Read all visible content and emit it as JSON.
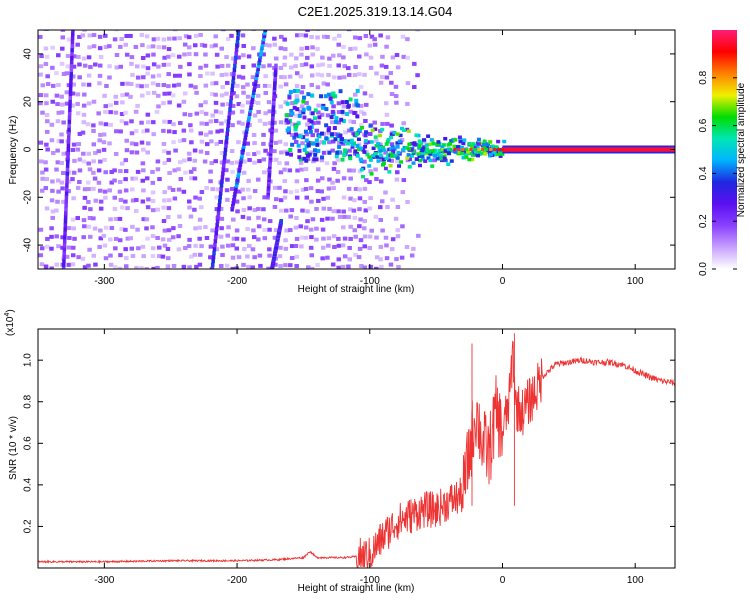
{
  "title": "C2E1.2025.319.13.14.G04",
  "colors": {
    "spectrum": [
      "#ffffff",
      "#c8a0ff",
      "#8a40ff",
      "#5a10f0",
      "#1e28e0",
      "#00b4ff",
      "#00e6b4",
      "#00dc00",
      "#f0f000",
      "#ff8000",
      "#ff0000",
      "#ff1e78"
    ],
    "snr_line": "#ee3333"
  },
  "chart_data": [
    {
      "type": "heatmap",
      "name": "spectrogram",
      "xlabel": "Height of straight line (km)",
      "ylabel": "Frequency (Hz)",
      "xlim": [
        -350,
        130
      ],
      "ylim": [
        -50,
        50
      ],
      "xticks": [
        -300,
        -200,
        -100,
        0,
        100
      ],
      "yticks": [
        -40,
        -20,
        0,
        20,
        40
      ],
      "xtick_labels": [
        "-300",
        "-200",
        "-100",
        "0",
        "100"
      ],
      "ytick_labels": [
        "-40",
        "-20",
        "0",
        "20",
        "40"
      ],
      "colorbar": {
        "label": "Normalized spectral amplitude",
        "range": [
          0,
          1
        ],
        "ticks": [
          0.0,
          0.2,
          0.4,
          0.6,
          0.8
        ],
        "tick_labels": [
          "0.0",
          "0.2",
          "0.4",
          "0.6",
          "0.8"
        ]
      },
      "features": [
        {
          "name": "noise field",
          "x_range": [
            -350,
            -110
          ],
          "freq_range": [
            -50,
            50
          ],
          "amplitude": 0.15
        },
        {
          "name": "streak A",
          "from": [
            -332,
            -50
          ],
          "to": [
            -325,
            50
          ],
          "amplitude": 0.2
        },
        {
          "name": "streak B",
          "from": [
            -220,
            -50
          ],
          "to": [
            -200,
            50
          ],
          "amplitude": 0.25
        },
        {
          "name": "streak C",
          "from": [
            -205,
            -25
          ],
          "to": [
            -180,
            50
          ],
          "amplitude": 0.3
        },
        {
          "name": "streak D",
          "from": [
            -175,
            -50
          ],
          "to": [
            -168,
            -30
          ],
          "amplitude": 0.25
        },
        {
          "name": "streak E",
          "from": [
            -178,
            -20
          ],
          "to": [
            -172,
            35
          ],
          "amplitude": 0.2
        },
        {
          "name": "transition blob",
          "x_range": [
            -165,
            -110
          ],
          "freq_range": [
            -5,
            25
          ],
          "amplitude": 0.45
        },
        {
          "name": "converging signal",
          "x_range": [
            -110,
            0
          ],
          "freq_range": [
            -12,
            12
          ],
          "amplitude": 0.55
        },
        {
          "name": "steady signal",
          "x_range": [
            0,
            130
          ],
          "frequency": 0,
          "amplitude": 0.95
        }
      ]
    },
    {
      "type": "line",
      "name": "snr",
      "xlabel": "Height of straight line (km)",
      "ylabel": "SNR (10 * v/v)",
      "scale_label": "(x10",
      "scale_exponent": "4",
      "xlim": [
        -350,
        130
      ],
      "ylim": [
        0,
        1.15
      ],
      "xticks": [
        -300,
        -200,
        -100,
        0,
        100
      ],
      "yticks": [
        0.2,
        0.4,
        0.6,
        0.8,
        1.0
      ],
      "xtick_labels": [
        "-300",
        "-200",
        "-100",
        "0",
        "100"
      ],
      "ytick_labels": [
        "0.2",
        "0.4",
        "0.6",
        "0.8",
        "1.0"
      ],
      "x": [
        -350,
        -300,
        -250,
        -200,
        -170,
        -150,
        -145,
        -140,
        -120,
        -100,
        -90,
        -80,
        -70,
        -60,
        -50,
        -40,
        -30,
        -25,
        -20,
        -15,
        -10,
        -5,
        0,
        5,
        8,
        10,
        15,
        20,
        25,
        30,
        35,
        40,
        50,
        60,
        70,
        80,
        90,
        100,
        110,
        120,
        130
      ],
      "y": [
        0.03,
        0.03,
        0.035,
        0.035,
        0.04,
        0.05,
        0.08,
        0.05,
        0.05,
        0.06,
        0.15,
        0.22,
        0.25,
        0.28,
        0.28,
        0.32,
        0.35,
        0.55,
        0.75,
        0.6,
        0.55,
        0.75,
        0.65,
        0.8,
        1.05,
        0.78,
        0.75,
        0.8,
        0.85,
        0.92,
        0.95,
        0.98,
        0.99,
        1.0,
        0.99,
        0.99,
        0.98,
        0.95,
        0.92,
        0.9,
        0.89
      ],
      "annotations": [
        {
          "x": -23,
          "y": 1.08,
          "note": "spike"
        },
        {
          "x": 9,
          "y": 1.13,
          "note": "spike"
        }
      ]
    }
  ]
}
